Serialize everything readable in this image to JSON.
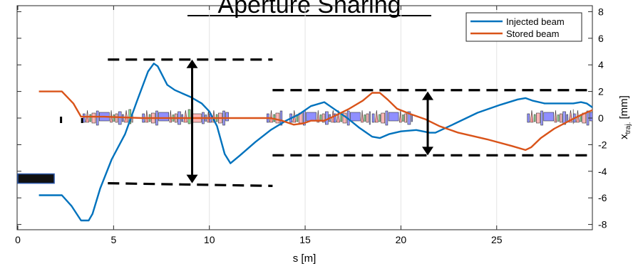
{
  "chart_data": {
    "type": "line",
    "title": "Aperture Sharing",
    "xlabel": "s [m]",
    "ylabel": "x",
    "ylabel_sub": "traj.",
    "ylabel_unit": "[mm]",
    "xlim": [
      0,
      30
    ],
    "ylim": [
      -8.3,
      8.3
    ],
    "xticks": [
      0,
      5,
      10,
      15,
      20,
      25
    ],
    "yticks": [
      8,
      6,
      4,
      2,
      0,
      -2,
      -4,
      -6,
      -8
    ],
    "grid": "vertical",
    "legend_position": "top-right",
    "series": [
      {
        "name": "Injected beam",
        "color": "#0072BD",
        "points": [
          [
            1.1,
            -5.8
          ],
          [
            2.3,
            -5.8
          ],
          [
            2.8,
            -6.6
          ],
          [
            3.3,
            -7.7
          ],
          [
            3.7,
            -7.7
          ],
          [
            3.9,
            -7.2
          ],
          [
            4.3,
            -5.3
          ],
          [
            4.9,
            -3.1
          ],
          [
            5.6,
            -1.2
          ],
          [
            6.2,
            1.2
          ],
          [
            6.8,
            3.5
          ],
          [
            7.1,
            4.1
          ],
          [
            7.3,
            3.9
          ],
          [
            7.8,
            2.5
          ],
          [
            8.2,
            2.1
          ],
          [
            9.0,
            1.6
          ],
          [
            9.6,
            1.1
          ],
          [
            10.0,
            0.5
          ],
          [
            10.4,
            -0.6
          ],
          [
            10.8,
            -2.7
          ],
          [
            11.1,
            -3.4
          ],
          [
            11.6,
            -2.8
          ],
          [
            12.4,
            -1.8
          ],
          [
            13.2,
            -0.9
          ],
          [
            14.0,
            -0.2
          ],
          [
            14.7,
            0.3
          ],
          [
            15.3,
            0.9
          ],
          [
            16.0,
            1.2
          ],
          [
            16.6,
            0.6
          ],
          [
            17.2,
            0
          ],
          [
            17.8,
            -0.7
          ],
          [
            18.5,
            -1.4
          ],
          [
            18.9,
            -1.5
          ],
          [
            19.4,
            -1.2
          ],
          [
            20.0,
            -1.0
          ],
          [
            20.8,
            -0.9
          ],
          [
            21.5,
            -1.1
          ],
          [
            21.8,
            -1.1
          ],
          [
            22.7,
            -0.5
          ],
          [
            24.0,
            0.4
          ],
          [
            25.2,
            1.0
          ],
          [
            26.1,
            1.4
          ],
          [
            26.5,
            1.5
          ],
          [
            26.9,
            1.3
          ],
          [
            27.5,
            1.1
          ],
          [
            28.2,
            1.1
          ],
          [
            29.0,
            1.1
          ],
          [
            29.4,
            1.2
          ],
          [
            29.7,
            1.1
          ],
          [
            30.0,
            0.8
          ]
        ]
      },
      {
        "name": "Stored beam",
        "color": "#D95319",
        "points": [
          [
            1.1,
            2.0
          ],
          [
            2.3,
            2.0
          ],
          [
            2.9,
            1.1
          ],
          [
            3.3,
            0.1
          ],
          [
            4.5,
            0.1
          ],
          [
            6.5,
            0
          ],
          [
            8.5,
            0
          ],
          [
            10.5,
            0
          ],
          [
            12.0,
            0
          ],
          [
            13.2,
            0
          ],
          [
            13.8,
            -0.2
          ],
          [
            14.4,
            -0.5
          ],
          [
            14.9,
            -0.4
          ],
          [
            15.3,
            -0.2
          ],
          [
            16.0,
            -0.2
          ],
          [
            16.6,
            0.2
          ],
          [
            17.3,
            0.7
          ],
          [
            18.0,
            1.3
          ],
          [
            18.5,
            1.9
          ],
          [
            18.9,
            1.9
          ],
          [
            19.3,
            1.4
          ],
          [
            19.8,
            0.7
          ],
          [
            20.5,
            0.3
          ],
          [
            21.3,
            -0.1
          ],
          [
            22.0,
            -0.6
          ],
          [
            23.0,
            -1.1
          ],
          [
            24.5,
            -1.6
          ],
          [
            25.8,
            -2.1
          ],
          [
            26.5,
            -2.4
          ],
          [
            26.8,
            -2.2
          ],
          [
            27.3,
            -1.5
          ],
          [
            28.0,
            -0.8
          ],
          [
            28.8,
            -0.2
          ],
          [
            29.5,
            0.3
          ],
          [
            30.0,
            0.6
          ]
        ]
      }
    ],
    "aperture_lines": [
      {
        "x": [
          4.7,
          13.3
        ],
        "y": 4.4
      },
      {
        "x": [
          4.7,
          13.3
        ],
        "y": -4.9,
        "y_end": -5.1
      },
      {
        "x": [
          13.3,
          30
        ],
        "y": 2.1
      },
      {
        "x": [
          13.3,
          30
        ],
        "y": -2.8
      }
    ],
    "arrows": [
      {
        "x": 9.1,
        "y": [
          4.4,
          -4.9
        ]
      },
      {
        "x": 21.4,
        "y": [
          2.0,
          -2.8
        ]
      }
    ],
    "septum_block": {
      "x": [
        0,
        1.9
      ],
      "y": [
        -4.2,
        -4.9
      ]
    },
    "lattice_segments": [
      {
        "x": [
          3.4,
          6.0
        ]
      },
      {
        "x": [
          6.5,
          10.0
        ]
      },
      {
        "x": [
          10.0,
          11.0
        ]
      },
      {
        "x": [
          13.0,
          13.8
        ]
      },
      {
        "x": [
          14.2,
          16.5
        ]
      },
      {
        "x": [
          16.5,
          18.4
        ]
      },
      {
        "x": [
          18.5,
          20.6
        ]
      },
      {
        "x": [
          26.6,
          29.0
        ]
      },
      {
        "x": [
          29.0,
          30.0
        ]
      }
    ]
  }
}
